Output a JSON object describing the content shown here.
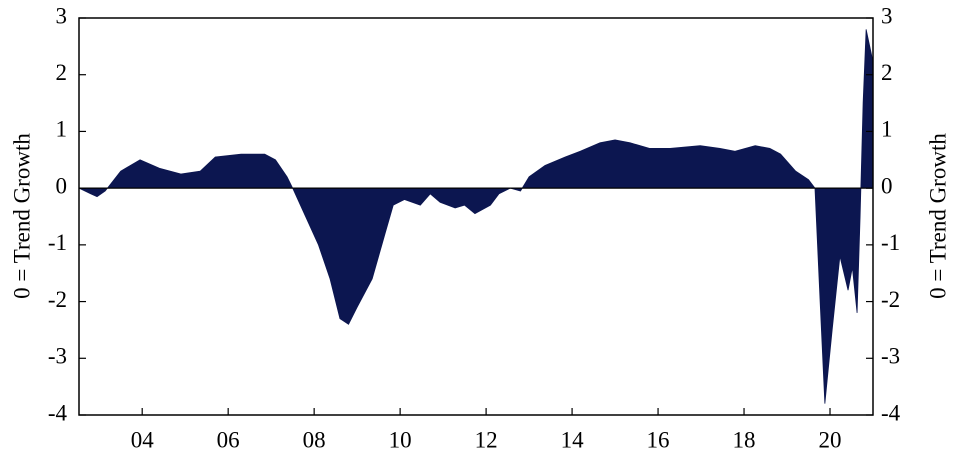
{
  "chart_data": {
    "type": "area",
    "y_label": "0 = Trend Growth",
    "y2_label": "0 = Trend Growth",
    "x": [
      2002.53,
      2002.8,
      2002.95,
      2003.14,
      2003.5,
      2003.95,
      2004.4,
      2004.9,
      2005.35,
      2005.7,
      2006.3,
      2006.85,
      2007.1,
      2007.37,
      2007.5,
      2007.8,
      2008.1,
      2008.37,
      2008.6,
      2008.8,
      2009.0,
      2009.35,
      2009.65,
      2009.84,
      2010.1,
      2010.47,
      2010.7,
      2010.93,
      2011.28,
      2011.5,
      2011.74,
      2012.1,
      2012.3,
      2012.56,
      2012.8,
      2013.0,
      2013.37,
      2013.84,
      2014.19,
      2014.65,
      2015.0,
      2015.35,
      2015.8,
      2016.28,
      2016.98,
      2017.44,
      2017.79,
      2018.26,
      2018.6,
      2018.85,
      2019.2,
      2019.5,
      2019.65,
      2019.77,
      2019.88,
      2020.05,
      2020.23,
      2020.42,
      2020.52,
      2020.63,
      2020.7,
      2020.77,
      2020.84,
      2020.98
    ],
    "series": [
      {
        "color": "#0c1650",
        "values": [
          0,
          -0.1,
          -0.15,
          -0.05,
          0.3,
          0.5,
          0.35,
          0.25,
          0.3,
          0.55,
          0.6,
          0.6,
          0.5,
          0.2,
          0,
          -0.5,
          -1,
          -1.6,
          -2.3,
          -2.4,
          -2.1,
          -1.6,
          -0.8,
          -0.3,
          -0.2,
          -0.3,
          -0.1,
          -0.25,
          -0.35,
          -0.3,
          -0.45,
          -0.3,
          -0.1,
          0,
          -0.05,
          0.2,
          0.4,
          0.55,
          0.65,
          0.8,
          0.85,
          0.8,
          0.7,
          0.7,
          0.75,
          0.7,
          0.65,
          0.75,
          0.7,
          0.6,
          0.3,
          0.15,
          0,
          -2,
          -3.8,
          -2.5,
          -1.2,
          -1.8,
          -1.4,
          -2.2,
          -0.5,
          1.5,
          2.8,
          2.3
        ]
      }
    ],
    "xlim": [
      2002.53,
      2021.0
    ],
    "xticks": [
      {
        "value": 2004,
        "label": "04"
      },
      {
        "value": 2006,
        "label": "06"
      },
      {
        "value": 2008,
        "label": "08"
      },
      {
        "value": 2010,
        "label": "10"
      },
      {
        "value": 2012,
        "label": "12"
      },
      {
        "value": 2014,
        "label": "14"
      },
      {
        "value": 2016,
        "label": "16"
      },
      {
        "value": 2018,
        "label": "18"
      },
      {
        "value": 2020,
        "label": "20"
      }
    ],
    "ylim": [
      -4,
      3
    ],
    "yticks": [
      -4,
      -3,
      -2,
      -1,
      0,
      1,
      2,
      3
    ],
    "y2lim": [
      -4,
      3
    ],
    "y2ticks": [
      -4,
      -3,
      -2,
      -1,
      0,
      1,
      2,
      3
    ]
  }
}
